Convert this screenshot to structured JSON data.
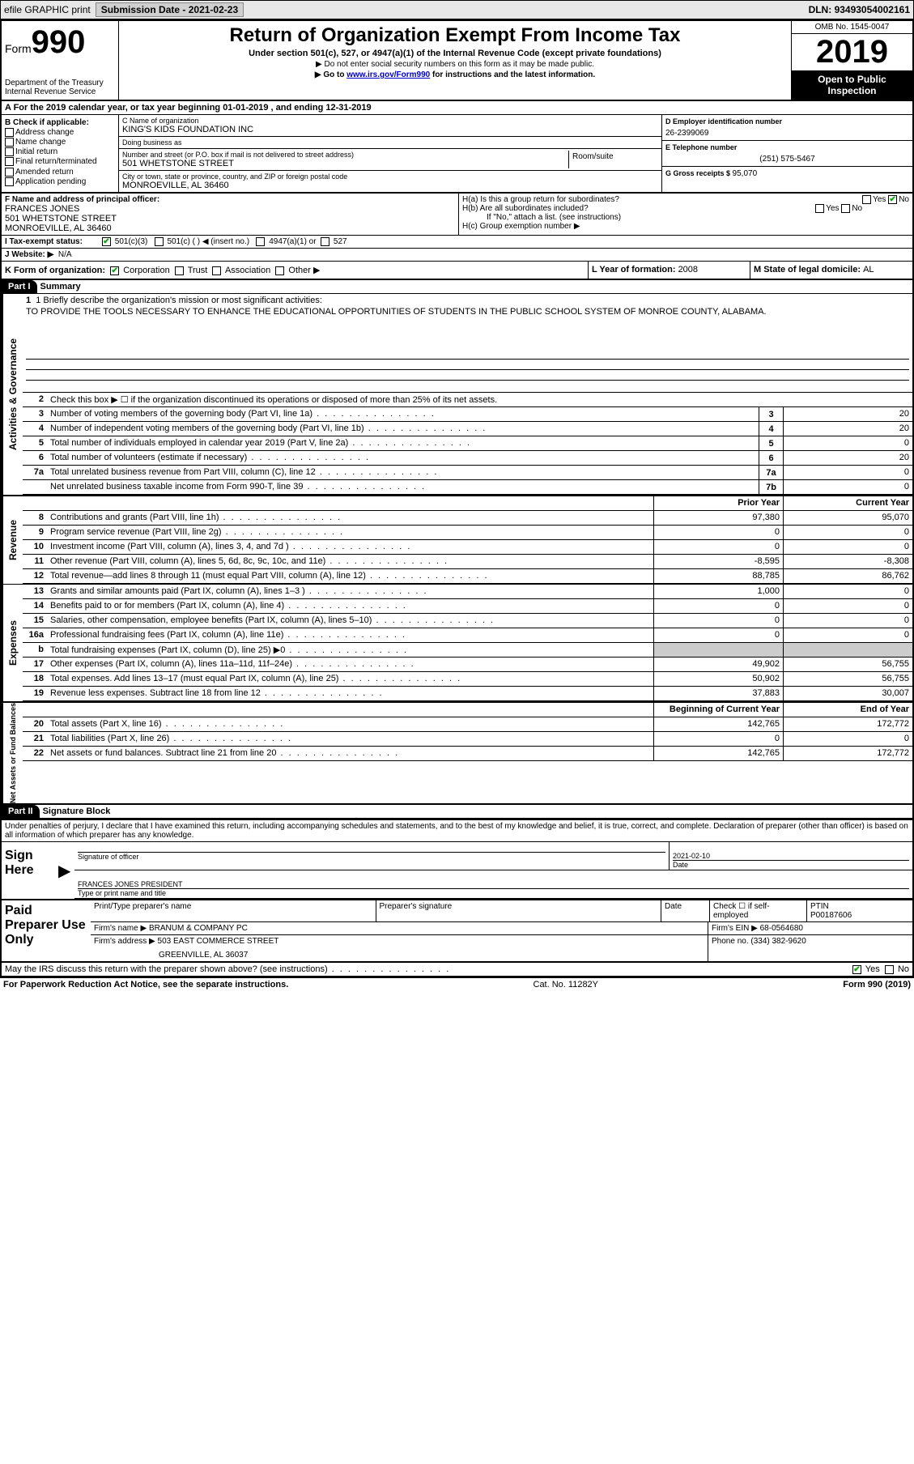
{
  "topbar": {
    "efile": "efile GRAPHIC print",
    "submission_lbl": "Submission Date - ",
    "submission_date": "2021-02-23",
    "dln_lbl": "DLN: ",
    "dln": "93493054002161"
  },
  "header": {
    "form_prefix": "Form",
    "form_number": "990",
    "dept1": "Department of the Treasury",
    "dept2": "Internal Revenue Service",
    "title": "Return of Organization Exempt From Income Tax",
    "subtitle": "Under section 501(c), 527, or 4947(a)(1) of the Internal Revenue Code (except private foundations)",
    "note1": "▶ Do not enter social security numbers on this form as it may be made public.",
    "note2_pre": "▶ Go to ",
    "note2_link": "www.irs.gov/Form990",
    "note2_post": " for instructions and the latest information.",
    "omb": "OMB No. 1545-0047",
    "year": "2019",
    "open": "Open to Public Inspection"
  },
  "rowA": "A For the 2019 calendar year, or tax year beginning 01-01-2019   , and ending 12-31-2019",
  "colB": {
    "hdr": "B Check if applicable:",
    "items": [
      "Address change",
      "Name change",
      "Initial return",
      "Final return/terminated",
      "Amended return",
      "Application pending"
    ]
  },
  "colC": {
    "name_lbl": "C Name of organization",
    "name": "KING'S KIDS FOUNDATION INC",
    "dba_lbl": "Doing business as",
    "dba": "",
    "street_lbl": "Number and street (or P.O. box if mail is not delivered to street address)",
    "street": "501 WHETSTONE STREET",
    "room_lbl": "Room/suite",
    "city_lbl": "City or town, state or province, country, and ZIP or foreign postal code",
    "city": "MONROEVILLE, AL  36460"
  },
  "colD": {
    "ein_lbl": "D Employer identification number",
    "ein": "26-2399069",
    "phone_lbl": "E Telephone number",
    "phone": "(251) 575-5467",
    "gross_lbl": "G Gross receipts $ ",
    "gross": "95,070"
  },
  "rowF": {
    "lbl": "F  Name and address of principal officer:",
    "name": "FRANCES JONES",
    "street": "501 WHETSTONE STREET",
    "city": "MONROEVILLE, AL  36460"
  },
  "rowH": {
    "ha": "H(a)  Is this a group return for subordinates?",
    "ha_no_checked": true,
    "hb": "H(b)  Are all subordinates included?",
    "hb_note": "If \"No,\" attach a list. (see instructions)",
    "hc": "H(c)  Group exemption number ▶"
  },
  "rowI": {
    "lbl": "I  Tax-exempt status:",
    "c3": "501(c)(3)",
    "c": "501(c) (  ) ◀ (insert no.)",
    "a1": "4947(a)(1) or",
    "s527": "527"
  },
  "rowJ": {
    "lbl": "J  Website: ▶",
    "val": "N/A"
  },
  "rowK": {
    "lbl": "K Form of organization:",
    "corp": "Corporation",
    "trust": "Trust",
    "assoc": "Association",
    "other": "Other ▶",
    "l_lbl": "L Year of formation: ",
    "l_val": "2008",
    "m_lbl": "M State of legal domicile: ",
    "m_val": "AL"
  },
  "part1": {
    "hdr": "Part I",
    "title": "Summary"
  },
  "summary": {
    "l1_lbl": "1  Briefly describe the organization's mission or most significant activities:",
    "l1_ans": "TO PROVIDE THE TOOLS NECESSARY TO ENHANCE THE EDUCATIONAL OPPORTUNITIES OF STUDENTS IN THE PUBLIC SCHOOL SYSTEM OF MONROE COUNTY, ALABAMA.",
    "l2": "Check this box ▶ ☐ if the organization discontinued its operations or disposed of more than 25% of its net assets.",
    "prior_hdr": "Prior Year",
    "current_hdr": "Current Year",
    "begin_hdr": "Beginning of Current Year",
    "end_hdr": "End of Year",
    "rows_ag": [
      {
        "n": "3",
        "t": "Number of voting members of the governing body (Part VI, line 1a)",
        "box": "3",
        "v": "20"
      },
      {
        "n": "4",
        "t": "Number of independent voting members of the governing body (Part VI, line 1b)",
        "box": "4",
        "v": "20"
      },
      {
        "n": "5",
        "t": "Total number of individuals employed in calendar year 2019 (Part V, line 2a)",
        "box": "5",
        "v": "0"
      },
      {
        "n": "6",
        "t": "Total number of volunteers (estimate if necessary)",
        "box": "6",
        "v": "20"
      },
      {
        "n": "7a",
        "t": "Total unrelated business revenue from Part VIII, column (C), line 12",
        "box": "7a",
        "v": "0"
      },
      {
        "n": "",
        "t": "Net unrelated business taxable income from Form 990-T, line 39",
        "box": "7b",
        "v": "0"
      }
    ],
    "rows_rev": [
      {
        "n": "8",
        "t": "Contributions and grants (Part VIII, line 1h)",
        "py": "97,380",
        "cy": "95,070"
      },
      {
        "n": "9",
        "t": "Program service revenue (Part VIII, line 2g)",
        "py": "0",
        "cy": "0"
      },
      {
        "n": "10",
        "t": "Investment income (Part VIII, column (A), lines 3, 4, and 7d )",
        "py": "0",
        "cy": "0"
      },
      {
        "n": "11",
        "t": "Other revenue (Part VIII, column (A), lines 5, 6d, 8c, 9c, 10c, and 11e)",
        "py": "-8,595",
        "cy": "-8,308"
      },
      {
        "n": "12",
        "t": "Total revenue—add lines 8 through 11 (must equal Part VIII, column (A), line 12)",
        "py": "88,785",
        "cy": "86,762"
      }
    ],
    "rows_exp": [
      {
        "n": "13",
        "t": "Grants and similar amounts paid (Part IX, column (A), lines 1–3 )",
        "py": "1,000",
        "cy": "0"
      },
      {
        "n": "14",
        "t": "Benefits paid to or for members (Part IX, column (A), line 4)",
        "py": "0",
        "cy": "0"
      },
      {
        "n": "15",
        "t": "Salaries, other compensation, employee benefits (Part IX, column (A), lines 5–10)",
        "py": "0",
        "cy": "0"
      },
      {
        "n": "16a",
        "t": "Professional fundraising fees (Part IX, column (A), line 11e)",
        "py": "0",
        "cy": "0"
      },
      {
        "n": "b",
        "t": "Total fundraising expenses (Part IX, column (D), line 25) ▶0",
        "py": "",
        "cy": "",
        "shade": true
      },
      {
        "n": "17",
        "t": "Other expenses (Part IX, column (A), lines 11a–11d, 11f–24e)",
        "py": "49,902",
        "cy": "56,755"
      },
      {
        "n": "18",
        "t": "Total expenses. Add lines 13–17 (must equal Part IX, column (A), line 25)",
        "py": "50,902",
        "cy": "56,755"
      },
      {
        "n": "19",
        "t": "Revenue less expenses. Subtract line 18 from line 12",
        "py": "37,883",
        "cy": "30,007"
      }
    ],
    "rows_net": [
      {
        "n": "20",
        "t": "Total assets (Part X, line 16)",
        "py": "142,765",
        "cy": "172,772"
      },
      {
        "n": "21",
        "t": "Total liabilities (Part X, line 26)",
        "py": "0",
        "cy": "0"
      },
      {
        "n": "22",
        "t": "Net assets or fund balances. Subtract line 21 from line 20",
        "py": "142,765",
        "cy": "172,772"
      }
    ],
    "side_ag": "Activities & Governance",
    "side_rev": "Revenue",
    "side_exp": "Expenses",
    "side_net": "Net Assets or Fund Balances"
  },
  "part2": {
    "hdr": "Part II",
    "title": "Signature Block"
  },
  "sig": {
    "declare": "Under penalties of perjury, I declare that I have examined this return, including accompanying schedules and statements, and to the best of my knowledge and belief, it is true, correct, and complete. Declaration of preparer (other than officer) is based on all information of which preparer has any knowledge.",
    "sign_here": "Sign Here",
    "sig_lbl": "Signature of officer",
    "date_lbl": "Date",
    "date": "2021-02-10",
    "name": "FRANCES JONES PRESIDENT",
    "name_lbl": "Type or print name and title"
  },
  "prep": {
    "lbl": "Paid Preparer Use Only",
    "p1": "Print/Type preparer's name",
    "p2": "Preparer's signature",
    "p3": "Date",
    "p4_lbl": "Check ☐ if self-employed",
    "p5_lbl": "PTIN",
    "p5": "P00187606",
    "firm_lbl": "Firm's name   ▶ ",
    "firm": "BRANUM & COMPANY PC",
    "ein_lbl": "Firm's EIN ▶ ",
    "ein": "68-0564680",
    "addr_lbl": "Firm's address ▶ ",
    "addr1": "503 EAST COMMERCE STREET",
    "addr2": "GREENVILLE, AL  36037",
    "phone_lbl": "Phone no. ",
    "phone": "(334) 382-9620"
  },
  "discuss": {
    "q": "May the IRS discuss this return with the preparer shown above? (see instructions)",
    "yes": "Yes",
    "no": "No"
  },
  "footer": {
    "left": "For Paperwork Reduction Act Notice, see the separate instructions.",
    "mid": "Cat. No. 11282Y",
    "right": "Form 990 (2019)"
  }
}
